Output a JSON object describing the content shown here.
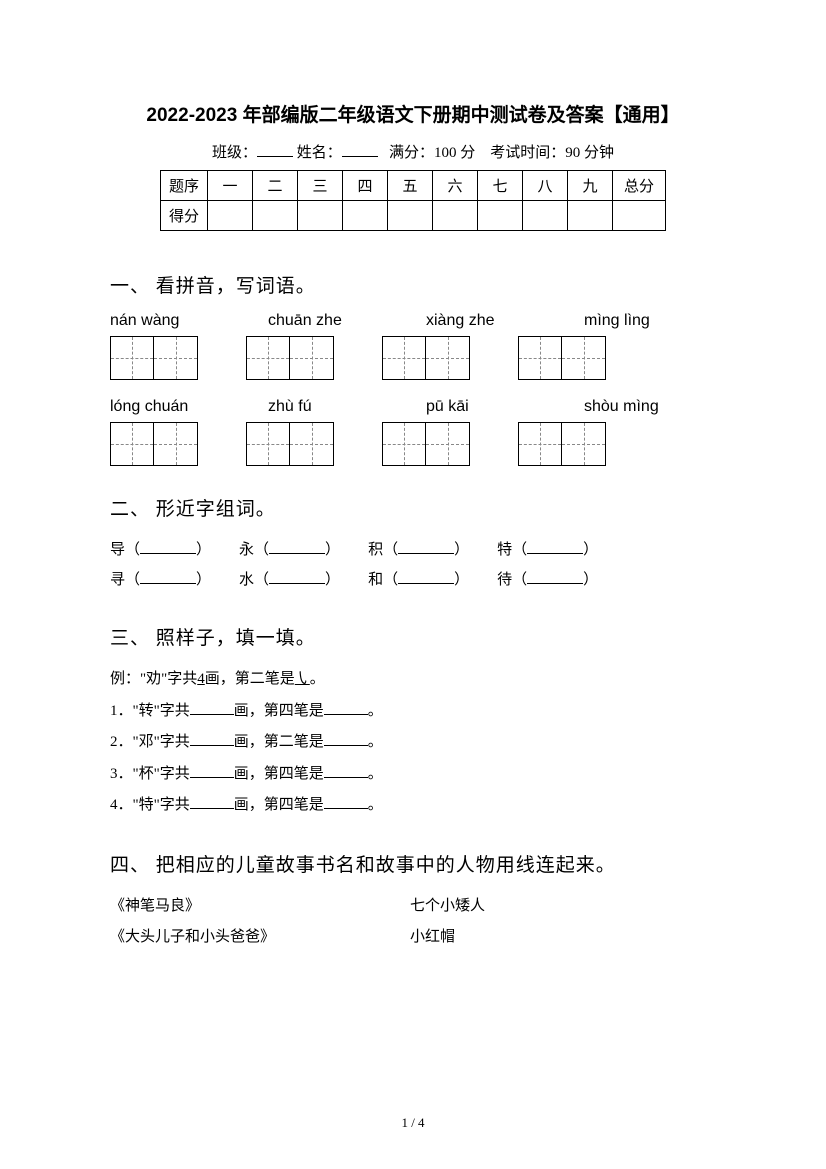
{
  "title": "2022-2023 年部编版二年级语文下册期中测试卷及答案【通用】",
  "meta": {
    "class_label": "班级：",
    "name_label": "姓名：",
    "full_label": "满分：",
    "full_value": "100 分",
    "time_label": "考试时间：",
    "time_value": "90 分钟"
  },
  "score_table": {
    "row1_label": "题序",
    "cols": [
      "一",
      "二",
      "三",
      "四",
      "五",
      "六",
      "七",
      "八",
      "九"
    ],
    "total": "总分",
    "row2_label": "得分"
  },
  "q1": {
    "heading": "一、 看拼音，写词语。",
    "pinyin_row1": [
      "nán  wàng",
      "chuān zhe",
      "xiàng zhe",
      "mìng lìng"
    ],
    "pinyin_row2": [
      "lóng chuán",
      "zhù   fú",
      "pū   kāi",
      "shòu mìng"
    ]
  },
  "q2": {
    "heading": "二、 形近字组词。",
    "rows": [
      [
        "导（",
        "永（",
        "积（",
        "特（"
      ],
      [
        "寻（",
        "水（",
        "和（",
        "待（"
      ]
    ],
    "close": "）"
  },
  "q3": {
    "heading": "三、 照样子，填一填。",
    "example_prefix": "例：\"劝\"字共",
    "example_strokes": "4",
    "example_mid": "画，第二笔是",
    "example_stroke_shape": "㇂",
    "example_end": "。",
    "items": [
      {
        "n": "1．",
        "char": "转",
        "mid": "画，第四笔是"
      },
      {
        "n": "2．",
        "char": "邓",
        "mid": "画，第二笔是"
      },
      {
        "n": "3．",
        "char": "杯",
        "mid": "画，第四笔是"
      },
      {
        "n": "4．",
        "char": "特",
        "mid": "画，第四笔是"
      }
    ],
    "line_prefix1": "\"",
    "line_prefix2": "\"字共",
    "line_end": "。"
  },
  "q4": {
    "heading": "四、 把相应的儿童故事书名和故事中的人物用线连起来。",
    "pairs": [
      {
        "left": "《神笔马良》",
        "right": "七个小矮人"
      },
      {
        "left": "《大头儿子和小头爸爸》",
        "right": "小红帽"
      }
    ]
  },
  "footer": {
    "page": "1 / 4"
  }
}
